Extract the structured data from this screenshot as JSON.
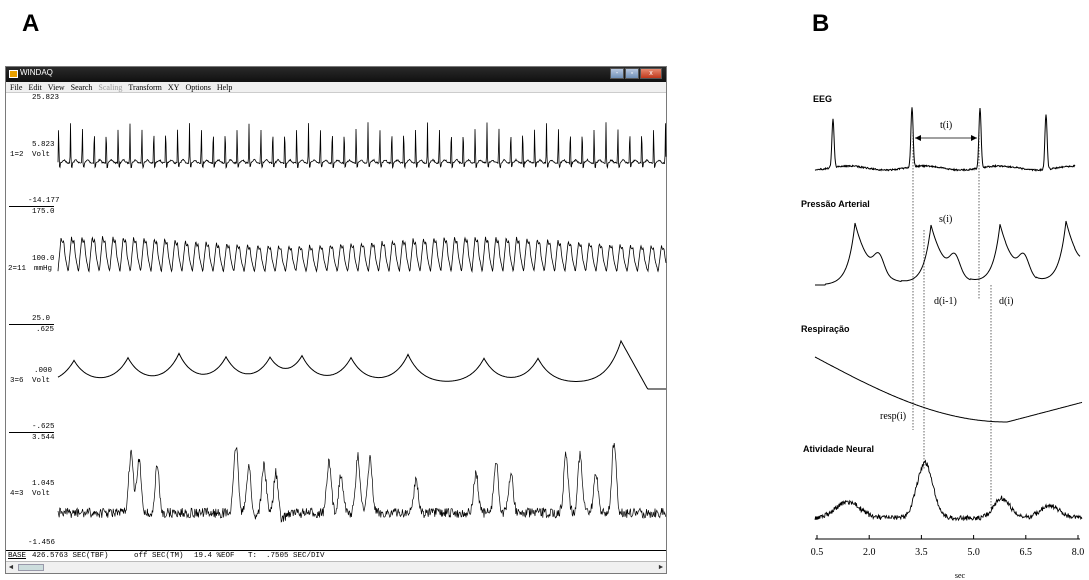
{
  "panels": {
    "a": "A",
    "b": "B"
  },
  "windaq": {
    "title": "WINDAQ",
    "window_buttons": [
      "-",
      "▫",
      "x"
    ],
    "menu": [
      {
        "label": "File",
        "enabled": true
      },
      {
        "label": "Edit",
        "enabled": true
      },
      {
        "label": "View",
        "enabled": true
      },
      {
        "label": "Search",
        "enabled": true
      },
      {
        "label": "Scaling",
        "enabled": false
      },
      {
        "label": "Transform",
        "enabled": true
      },
      {
        "label": "XY",
        "enabled": true
      },
      {
        "label": "Options",
        "enabled": true
      },
      {
        "label": "Help",
        "enabled": true
      }
    ],
    "channels": [
      {
        "top": "25.823",
        "mid": "5.823",
        "unit": "Volt",
        "id": "1=2",
        "bottom": "-14.177"
      },
      {
        "top": "175.0",
        "mid": "100.0",
        "unit": "mmHg",
        "id": "2=11",
        "bottom": "25.0"
      },
      {
        "top": ".625",
        "mid": ".000",
        "unit": "Volt",
        "id": "3=6",
        "bottom": "-.625"
      },
      {
        "top": "3.544",
        "mid": "1.045",
        "unit": "Volt",
        "id": "4=3",
        "bottom": "-1.456"
      }
    ],
    "status": {
      "base": "BASE",
      "time": "426.5763 SEC(TBF)",
      "off": "off SEC(TM)",
      "eof": "19.4 %EOF",
      "tdiv": "T:  .7505 SEC/DIV"
    },
    "scroll_left": "◄",
    "scroll_right": "►"
  },
  "panel_b": {
    "traces": [
      {
        "title": "EEG"
      },
      {
        "title": "Pressão Arterial"
      },
      {
        "title": "Respiração"
      },
      {
        "title": "Atividade Neural"
      }
    ],
    "annotations": {
      "t": "t(i)",
      "s": "s(i)",
      "d_prev": "d(i-1)",
      "d": "d(i)",
      "resp": "resp(i)"
    },
    "x_ticks": [
      "0.5",
      "2.0",
      "3.5",
      "5.0",
      "6.5",
      "8.0"
    ],
    "x_label": "sec"
  },
  "colors": {
    "trace": "#000000",
    "titlebar": "#1a1a1a",
    "close": "#c8452a"
  }
}
